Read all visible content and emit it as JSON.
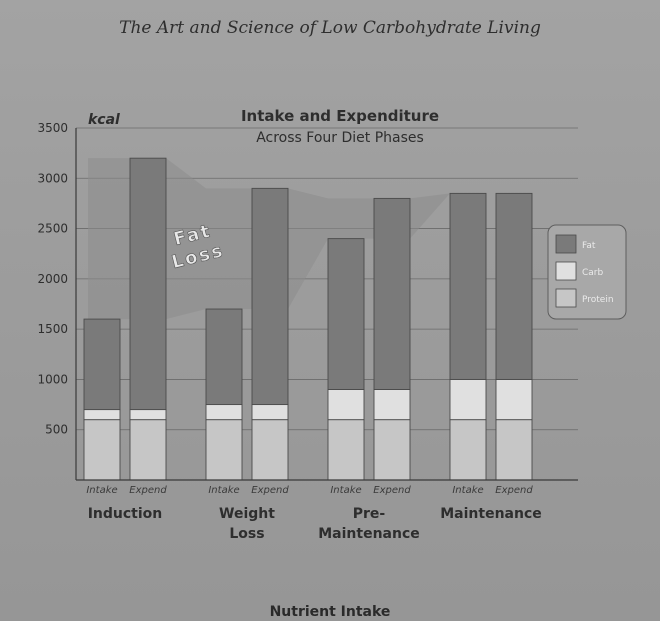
{
  "header": {
    "book_title": "The Art and Science of Low Carbohydrate Living"
  },
  "footer": {
    "next_heading": "Nutrient Intake"
  },
  "chart_data": {
    "type": "bar",
    "stacked": true,
    "title": "Intake and Expenditure",
    "subtitle": "Across Four Diet Phases",
    "ylabel": "kcal",
    "ylim": [
      0,
      3500
    ],
    "yticks": [
      500,
      1000,
      1500,
      2000,
      2500,
      3000,
      3500
    ],
    "grid": true,
    "legend_position": "right",
    "groups": [
      "Induction",
      "Weight Loss",
      "Pre-Maintenance",
      "Maintenance"
    ],
    "group_label_lines": [
      [
        "Induction"
      ],
      [
        "Weight",
        "Loss"
      ],
      [
        "Pre-",
        "Maintenance"
      ],
      [
        "Maintenance"
      ]
    ],
    "bar_labels": [
      "Intake",
      "Expend"
    ],
    "series": [
      {
        "name": "Protein",
        "color": "#c6c6c6",
        "values": [
          [
            600,
            600
          ],
          [
            600,
            600
          ],
          [
            600,
            600
          ],
          [
            600,
            600
          ]
        ]
      },
      {
        "name": "Carb",
        "color": "#e0e0e0",
        "values": [
          [
            100,
            100
          ],
          [
            150,
            150
          ],
          [
            300,
            300
          ],
          [
            400,
            400
          ]
        ]
      },
      {
        "name": "Fat",
        "color": "#7a7a7a",
        "values": [
          [
            900,
            2500
          ],
          [
            950,
            2150
          ],
          [
            1500,
            1900
          ],
          [
            1850,
            1850
          ]
        ]
      }
    ],
    "annotation": {
      "text_lines": [
        "Fat",
        "Loss"
      ]
    }
  }
}
